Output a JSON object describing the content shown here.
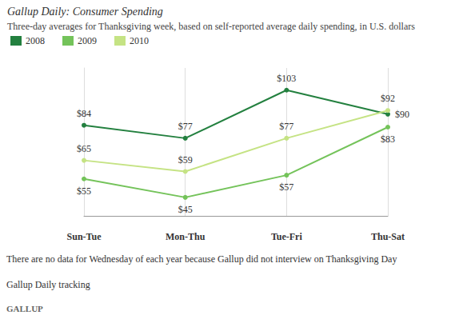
{
  "chart_data": {
    "type": "line",
    "title": "Gallup Daily: Consumer Spending",
    "subtitle": "Three-day averages for Thanksgiving week, based on self-reported average daily spending, in U.S. dollars",
    "categories": [
      "Sun-Tue",
      "Mon-Thu",
      "Tue-Fri",
      "Thu-Sat"
    ],
    "series": [
      {
        "name": "2008",
        "color": "#23803f",
        "values": [
          84,
          77,
          103,
          90
        ],
        "value_labels": [
          "$84",
          "$77",
          "$103",
          "$90"
        ]
      },
      {
        "name": "2009",
        "color": "#74c35a",
        "values": [
          55,
          45,
          57,
          83
        ],
        "value_labels": [
          "$55",
          "$45",
          "$57",
          "$83"
        ]
      },
      {
        "name": "2010",
        "color": "#c5e384",
        "values": [
          65,
          59,
          77,
          92
        ],
        "value_labels": [
          "$65",
          "$59",
          "$77",
          "$92"
        ]
      }
    ],
    "ylim": [
      35,
      115
    ],
    "grid": true,
    "legend": "top-left",
    "data_labels": true,
    "tick_labels": "x",
    "marker": "circle",
    "annotations": [
      "There are no data for Wednesday of each year because Gallup did not interview on Thanksgiving Day",
      "Gallup Daily tracking",
      "GALLUP"
    ]
  }
}
